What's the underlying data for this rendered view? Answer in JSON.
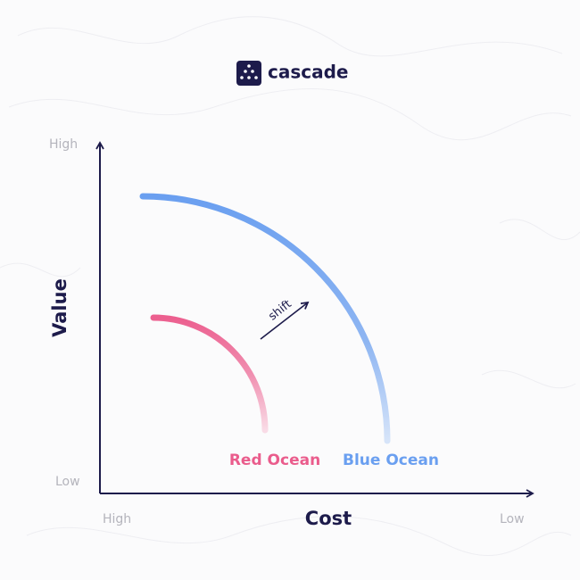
{
  "brand": "cascade",
  "y_axis": {
    "title": "Value",
    "top_label": "High",
    "bottom_label": "Low"
  },
  "x_axis": {
    "title": "Cost",
    "left_label": "High",
    "right_label": "Low"
  },
  "arrow_label": "shift",
  "curves": [
    {
      "label": "Red Ocean"
    },
    {
      "label": "Blue Ocean"
    }
  ]
}
